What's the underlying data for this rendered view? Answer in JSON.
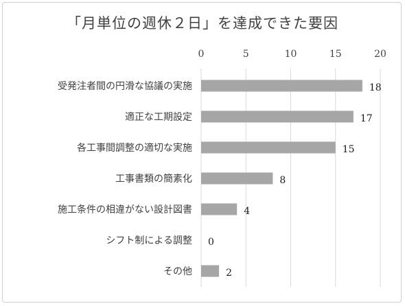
{
  "chart_data": {
    "type": "bar",
    "orientation": "horizontal",
    "title": "「月単位の週休２日」を達成できた要因",
    "categories": [
      "受発注者間の円滑な協議の実施",
      "適正な工期設定",
      "各工事間調整の適切な実施",
      "工事書類の簡素化",
      "施工条件の相違がない設計図書",
      "シフト制による調整",
      "その他"
    ],
    "values": [
      18,
      17,
      15,
      8,
      4,
      0,
      2
    ],
    "xlim": [
      0,
      20
    ],
    "x_ticks": [
      0,
      5,
      10,
      15,
      20
    ],
    "x_axis_position": "top",
    "grid": "vertical",
    "legend": "none",
    "bar_color": "#a6a6a6",
    "grid_color": "#d9d9d9"
  }
}
